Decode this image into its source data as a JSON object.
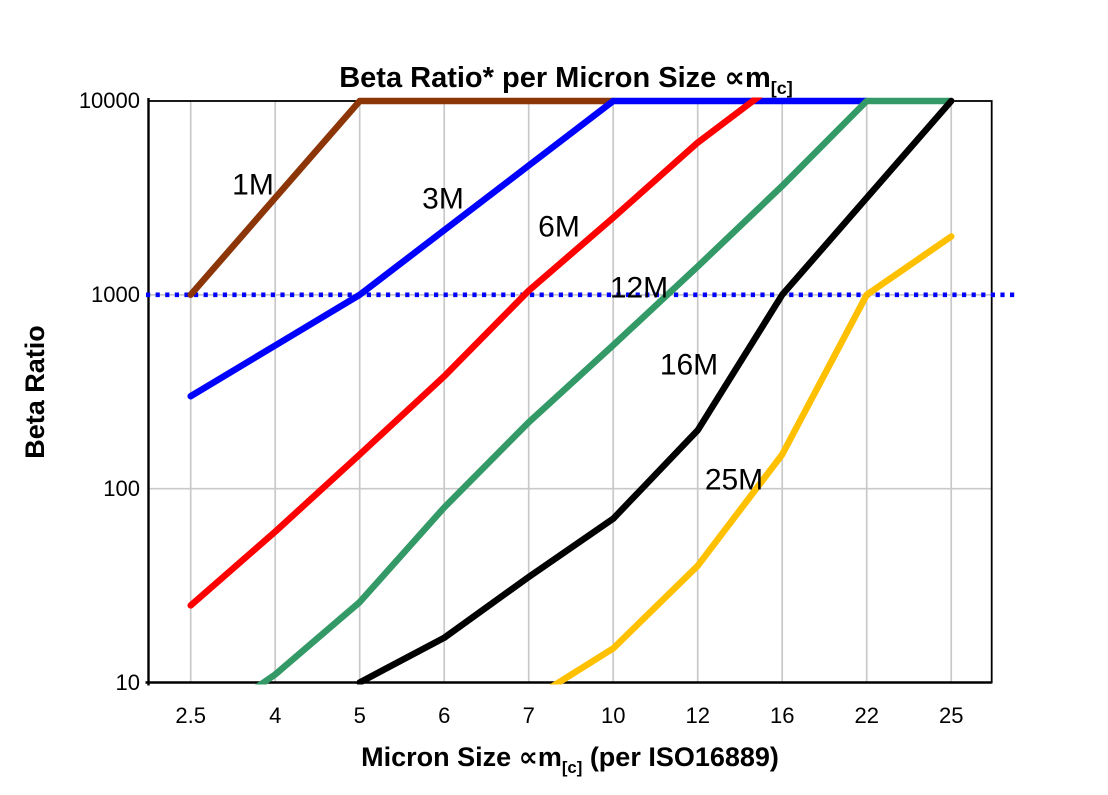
{
  "title": {
    "main": "Beta Ratio* per Micron Size ∝m",
    "sub": "[c]"
  },
  "yaxis": {
    "title": "Beta Ratio",
    "tick_labels": [
      "10",
      "100",
      "1000",
      "10000"
    ]
  },
  "xaxis": {
    "title_pre": "Micron Size ∝m",
    "title_sub": "[c]",
    "title_post": " (per ISO16889)"
  },
  "chart_data": {
    "type": "line",
    "x_categories": [
      "2.5",
      "4",
      "5",
      "6",
      "7",
      "10",
      "12",
      "16",
      "22",
      "25"
    ],
    "xlabel": "Micron Size ∝m[c] (per ISO16889)",
    "ylabel": "Beta Ratio",
    "y_scale": "log",
    "ylim": [
      10,
      10000
    ],
    "y_ticks": [
      10,
      100,
      1000,
      10000
    ],
    "grid": true,
    "grid_color": "#c9c9c9",
    "legend_position": "inline-labels",
    "reference_line": {
      "value": 1000,
      "color": "#0000ff",
      "style": "dotted"
    },
    "series": [
      {
        "name": "1M",
        "color": "#8c3608",
        "label_color": "#aa8155",
        "values": [
          1000,
          3162,
          10000,
          10000,
          10000,
          10000,
          null,
          null,
          null,
          null
        ]
      },
      {
        "name": "3M",
        "color": "#0000ff",
        "label_color": "#0000ff",
        "values": [
          300,
          548,
          1000,
          2154,
          4642,
          10000,
          10000,
          10000,
          10000,
          null
        ]
      },
      {
        "name": "6M",
        "color": "#ff0000",
        "label_color": "#ff0000",
        "values": [
          25,
          60,
          150,
          380,
          1050,
          2500,
          6100,
          13000,
          null,
          null
        ]
      },
      {
        "name": "12M",
        "color": "#339966",
        "label_color": "#339966",
        "values": [
          5.5,
          11,
          26,
          80,
          220,
          550,
          1400,
          3650,
          10000,
          10000
        ]
      },
      {
        "name": "16M",
        "color": "#000000",
        "label_color": "#000000",
        "values": [
          null,
          null,
          10,
          17,
          35,
          70,
          200,
          1000,
          3162,
          10000
        ]
      },
      {
        "name": "25M",
        "color": "#ffc000",
        "label_color": "#ffc000",
        "values": [
          null,
          null,
          null,
          null,
          8,
          15,
          40,
          150,
          1000,
          2000
        ]
      }
    ]
  }
}
